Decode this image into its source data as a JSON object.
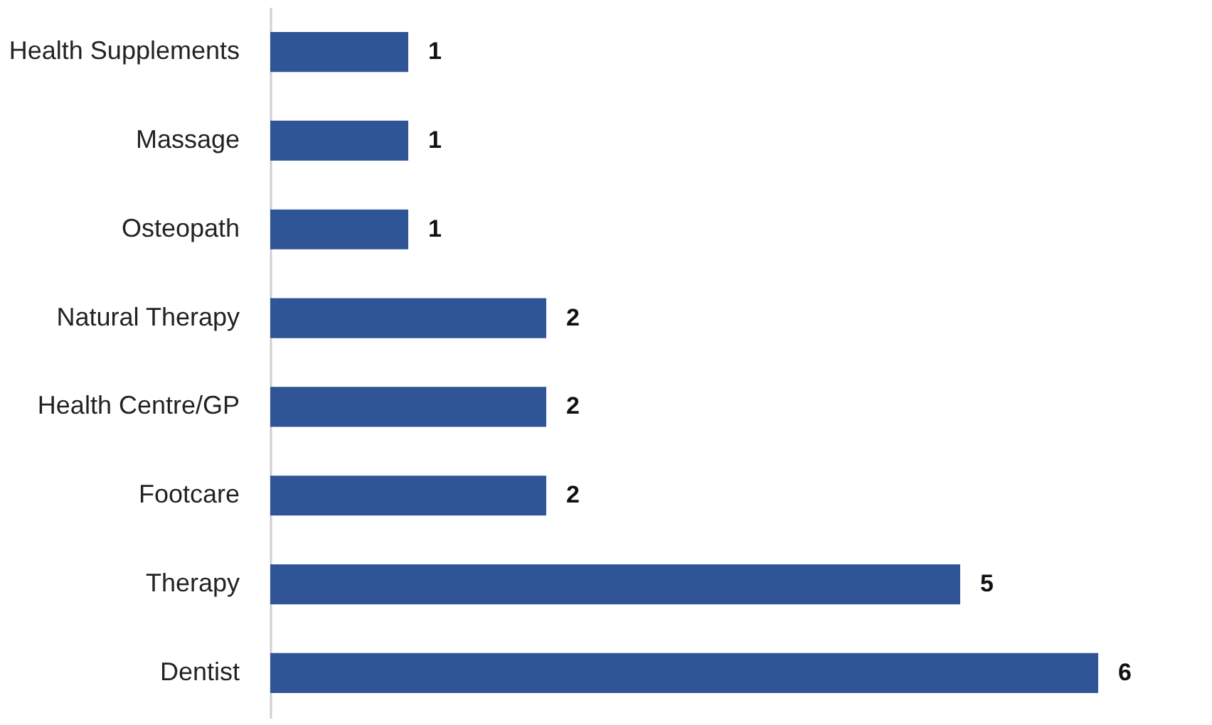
{
  "chart_data": {
    "type": "bar",
    "orientation": "horizontal",
    "categories": [
      "Health Supplements",
      "Massage",
      "Osteopath",
      "Natural Therapy",
      "Health Centre/GP",
      "Footcare",
      "Therapy",
      "Dentist"
    ],
    "values": [
      1,
      1,
      1,
      2,
      2,
      2,
      5,
      6
    ],
    "color": "#2f5597",
    "data_labels": true,
    "grid": false
  }
}
